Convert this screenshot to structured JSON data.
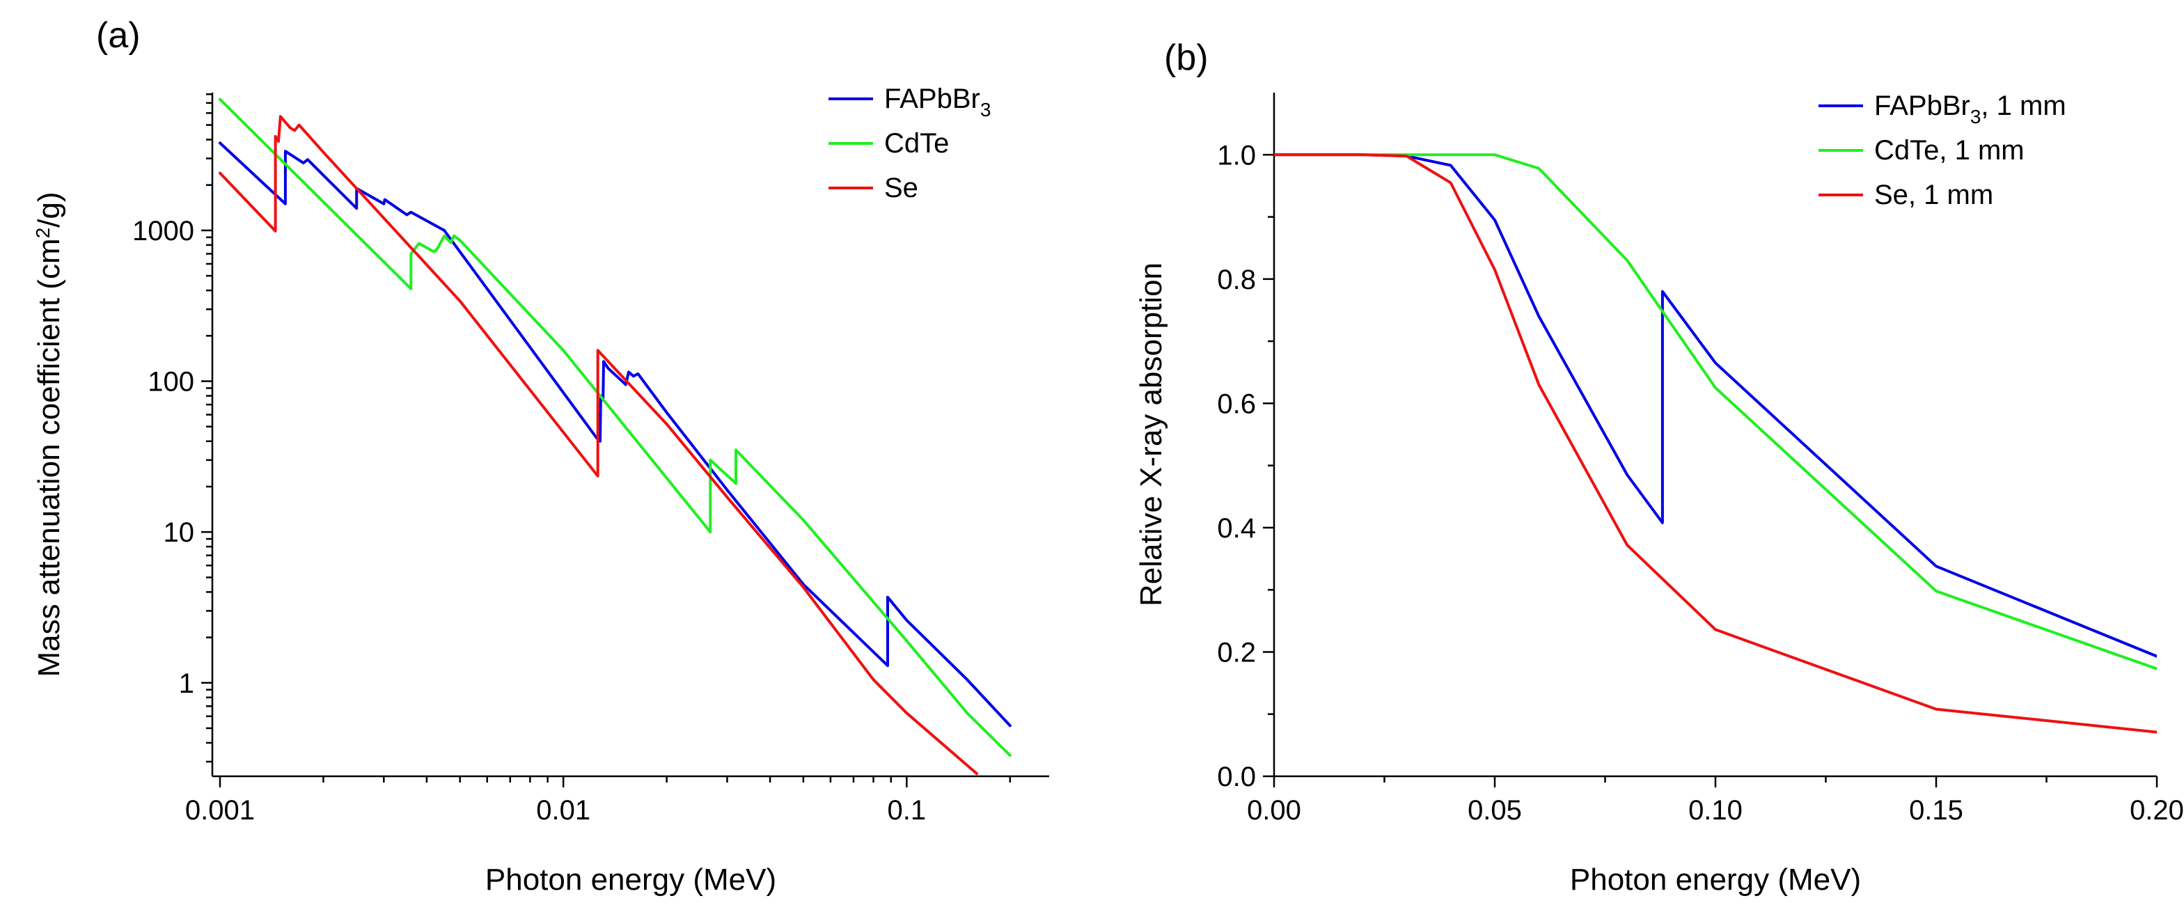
{
  "chart_data": [
    {
      "type": "line",
      "panel_label": "(a)",
      "xlabel": "Photon energy (MeV)",
      "ylabel": {
        "text": "Mass attenuation coefficient (cm",
        "sup": "2",
        "tail": "/g)"
      },
      "xscale": "log",
      "yscale": "log",
      "xlim": [
        0.00095,
        0.26
      ],
      "ylim": [
        0.24,
        8200
      ],
      "xticks": [
        0.001,
        0.01,
        0.1
      ],
      "xtick_labels": [
        "0.001",
        "0.01",
        "0.1"
      ],
      "yticks": [
        1,
        10,
        100,
        1000
      ],
      "ytick_labels": [
        "1",
        "10",
        "100",
        "1000"
      ],
      "legend_position": "top-right",
      "series": [
        {
          "name": "FAPbBr3",
          "label": {
            "text": "FAPbBr",
            "sub": "3"
          },
          "color": "#0000e6",
          "points": [
            [
              0.001,
              3800
            ],
            [
              0.00155,
              1500
            ],
            [
              0.00155,
              3350
            ],
            [
              0.00175,
              2800
            ],
            [
              0.0018,
              2950
            ],
            [
              0.0025,
              1400
            ],
            [
              0.0025,
              1900
            ],
            [
              0.003,
              1500
            ],
            [
              0.00302,
              1600
            ],
            [
              0.0035,
              1270
            ],
            [
              0.0036,
              1320
            ],
            [
              0.0045,
              1000
            ],
            [
              0.0125,
              42
            ],
            [
              0.0128,
              40
            ],
            [
              0.01285,
              80
            ],
            [
              0.01305,
              75
            ],
            [
              0.0131,
              135
            ],
            [
              0.0135,
              122
            ],
            [
              0.0152,
              95
            ],
            [
              0.0155,
              115
            ],
            [
              0.016,
              108
            ],
            [
              0.0165,
              112
            ],
            [
              0.02,
              62
            ],
            [
              0.03,
              19
            ],
            [
              0.05,
              4.5
            ],
            [
              0.088,
              1.3
            ],
            [
              0.088,
              3.7
            ],
            [
              0.1,
              2.6
            ],
            [
              0.15,
              1.05
            ],
            [
              0.2,
              0.52
            ]
          ]
        },
        {
          "name": "CdTe",
          "label": {
            "text": "CdTe"
          },
          "color": "#22ee22",
          "points": [
            [
              0.001,
              7400
            ],
            [
              0.0036,
              410
            ],
            [
              0.0036,
              700
            ],
            [
              0.0038,
              820
            ],
            [
              0.0042,
              720
            ],
            [
              0.0043,
              760
            ],
            [
              0.0045,
              920
            ],
            [
              0.0047,
              830
            ],
            [
              0.0048,
              920
            ],
            [
              0.005,
              860
            ],
            [
              0.01,
              160
            ],
            [
              0.0268,
              10
            ],
            [
              0.0268,
              30
            ],
            [
              0.0318,
              21
            ],
            [
              0.0318,
              35
            ],
            [
              0.05,
              12
            ],
            [
              0.1,
              1.9
            ],
            [
              0.15,
              0.63
            ],
            [
              0.2,
              0.33
            ]
          ]
        },
        {
          "name": "Se",
          "label": {
            "text": "Se"
          },
          "color": "#ee1111",
          "points": [
            [
              0.001,
              2400
            ],
            [
              0.00145,
              990
            ],
            [
              0.00145,
              4200
            ],
            [
              0.00148,
              3900
            ],
            [
              0.0015,
              5700
            ],
            [
              0.0016,
              4800
            ],
            [
              0.00165,
              4600
            ],
            [
              0.0017,
              5000
            ],
            [
              0.002,
              3300
            ],
            [
              0.005,
              340
            ],
            [
              0.0126,
              23.5
            ],
            [
              0.0126,
              160
            ],
            [
              0.02,
              52
            ],
            [
              0.03,
              17
            ],
            [
              0.05,
              4.3
            ],
            [
              0.08,
              1.05
            ],
            [
              0.1,
              0.63
            ],
            [
              0.16,
              0.25
            ]
          ]
        }
      ]
    },
    {
      "type": "line",
      "panel_label": "(b)",
      "xlabel": "Photon energy (MeV)",
      "ylabel": {
        "text": "Relative X-ray absorption"
      },
      "xscale": "linear",
      "yscale": "linear",
      "xlim": [
        0.0,
        0.2
      ],
      "ylim": [
        0.0,
        1.1
      ],
      "xticks": [
        0.0,
        0.05,
        0.1,
        0.15,
        0.2
      ],
      "xtick_labels": [
        "0.00",
        "0.05",
        "0.10",
        "0.15",
        "0.20"
      ],
      "yticks": [
        0.0,
        0.2,
        0.4,
        0.6,
        0.8,
        1.0
      ],
      "ytick_labels": [
        "0.0",
        "0.2",
        "0.4",
        "0.6",
        "0.8",
        "1.0"
      ],
      "legend_position": "top-right",
      "series": [
        {
          "name": "FAPbBr3, 1 mm",
          "label": {
            "text": "FAPbBr",
            "sub": "3",
            "tail": ", 1 mm"
          },
          "color": "#0000e6",
          "points": [
            [
              0.0,
              1.0
            ],
            [
              0.02,
              1.0
            ],
            [
              0.03,
              0.998
            ],
            [
              0.04,
              0.983
            ],
            [
              0.05,
              0.895
            ],
            [
              0.06,
              0.74
            ],
            [
              0.08,
              0.485
            ],
            [
              0.088,
              0.408
            ],
            [
              0.088,
              0.78
            ],
            [
              0.1,
              0.665
            ],
            [
              0.15,
              0.338
            ],
            [
              0.2,
              0.193
            ]
          ]
        },
        {
          "name": "CdTe, 1 mm",
          "label": {
            "text": "CdTe, 1 mm"
          },
          "color": "#22ee22",
          "points": [
            [
              0.0,
              1.0
            ],
            [
              0.03,
              1.0
            ],
            [
              0.04,
              1.0
            ],
            [
              0.05,
              1.0
            ],
            [
              0.06,
              0.978
            ],
            [
              0.08,
              0.83
            ],
            [
              0.1,
              0.625
            ],
            [
              0.15,
              0.298
            ],
            [
              0.2,
              0.173
            ]
          ]
        },
        {
          "name": "Se, 1 mm",
          "label": {
            "text": "Se, 1 mm"
          },
          "color": "#ee1111",
          "points": [
            [
              0.0,
              1.0
            ],
            [
              0.02,
              1.0
            ],
            [
              0.03,
              0.998
            ],
            [
              0.04,
              0.955
            ],
            [
              0.05,
              0.815
            ],
            [
              0.06,
              0.63
            ],
            [
              0.08,
              0.372
            ],
            [
              0.1,
              0.236
            ],
            [
              0.15,
              0.108
            ],
            [
              0.2,
              0.071
            ]
          ]
        }
      ]
    }
  ]
}
